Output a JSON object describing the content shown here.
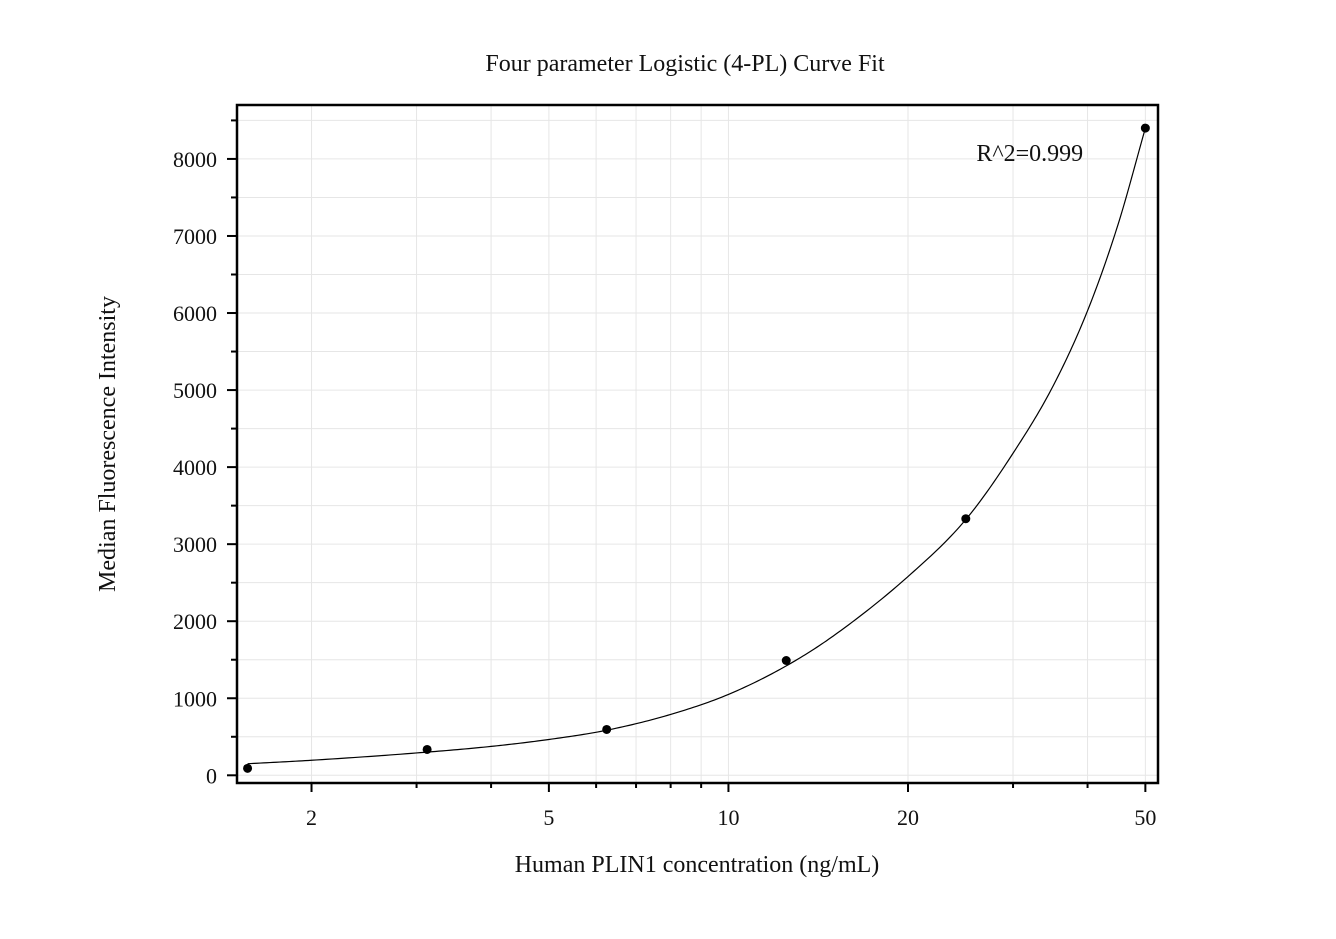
{
  "chart_data": {
    "type": "scatter",
    "title": "Four parameter Logistic (4-PL) Curve Fit",
    "xlabel": "Human PLIN1 concentration (ng/mL)",
    "ylabel": "Median Fluorescence Intensity",
    "x_scale": "log",
    "xlim": [
      1.5,
      52.5
    ],
    "ylim": [
      -100,
      8700
    ],
    "x_ticks": [
      2,
      5,
      10,
      20,
      50
    ],
    "x_tick_labels": [
      "2",
      "5",
      "10",
      "20",
      "50"
    ],
    "x_minor_ticks": [
      3,
      4,
      6,
      7,
      8,
      9,
      30,
      40
    ],
    "y_ticks": [
      0,
      1000,
      2000,
      3000,
      4000,
      5000,
      6000,
      7000,
      8000
    ],
    "y_tick_labels": [
      "0",
      "1000",
      "2000",
      "3000",
      "4000",
      "5000",
      "6000",
      "7000",
      "8000"
    ],
    "grid": true,
    "series": [
      {
        "x": [
          1.5625,
          3.125,
          6.25,
          12.5,
          25,
          50
        ],
        "y": [
          90,
          335,
          595,
          1490,
          3330,
          8400
        ]
      }
    ],
    "fit": {
      "model": "4PL",
      "x": [
        1.5625,
        2,
        3,
        4,
        5,
        6.25,
        8,
        10,
        12.5,
        15,
        20,
        25,
        30,
        35,
        40,
        45,
        50
      ],
      "y": [
        150,
        195,
        290,
        375,
        465,
        585,
        790,
        1050,
        1420,
        1810,
        2580,
        3320,
        4180,
        5050,
        6030,
        7150,
        8400
      ]
    },
    "annotations": [
      {
        "text": "R^2=0.999",
        "x": 32,
        "y": 8000
      }
    ]
  }
}
